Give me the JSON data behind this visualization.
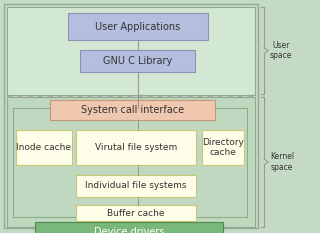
{
  "fig_w": 3.2,
  "fig_h": 2.33,
  "dpi": 100,
  "bg_outer": "#c5dac5",
  "bg_user": "#d2e8d2",
  "bg_kernel_inner": "#c0d8c0",
  "bg_kernel_outer": "#bdd8bd",
  "box_user_app_fc": "#b4bedd",
  "box_user_app_ec": "#9090b8",
  "box_gnu_fc": "#b4bedd",
  "box_gnu_ec": "#9090b8",
  "box_syscall_fc": "#f0c8b0",
  "box_syscall_ec": "#c09878",
  "box_yellow_fc": "#fdfde8",
  "box_yellow_ec": "#c8c878",
  "box_device_fc": "#78b878",
  "box_device_ec": "#508850",
  "connector_color": "#999999",
  "dashed_color": "#aaaaaa",
  "brace_color": "#999999",
  "text_color": "#333333",
  "outer_ec": "#90aa90",
  "inner_ec": "#90aa90",
  "label_user": "User\nspace",
  "label_kernel": "Kernel\nspace",
  "boxes": {
    "user_app": {
      "label": "User Applications"
    },
    "gnu": {
      "label": "GNU C Library"
    },
    "syscall": {
      "label": "System call interface"
    },
    "inode": {
      "label": "Inode cache"
    },
    "vfs": {
      "label": "Virutal file system"
    },
    "dircache": {
      "label": "Directory\ncache"
    },
    "indfs": {
      "label": "Individual file systems"
    },
    "buffer": {
      "label": "Buffer cache"
    },
    "device": {
      "label": "Device drivers"
    }
  }
}
